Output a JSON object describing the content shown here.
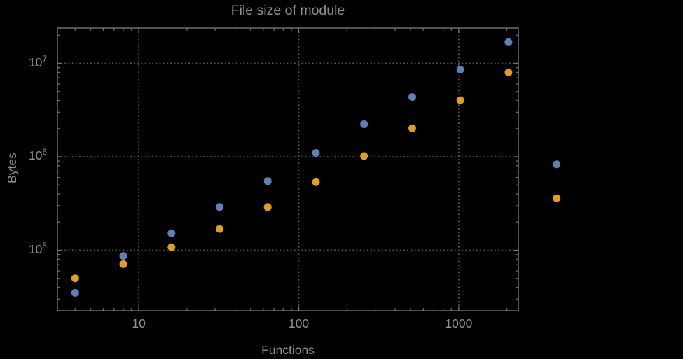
{
  "chart": {
    "title": "File size of module",
    "xlabel": "Functions",
    "ylabel": "Bytes"
  },
  "chart_data": {
    "type": "scatter",
    "title": "File size of module",
    "xlabel": "Functions",
    "ylabel": "Bytes",
    "x_scale": "log",
    "y_scale": "log",
    "grid": "dotted",
    "legend": "none",
    "xlim": [
      3.1,
      2360
    ],
    "ylim": [
      22500,
      23900000
    ],
    "x_tick_labels": [
      "10",
      "100",
      "1000"
    ],
    "x_tick_values": [
      10,
      100,
      1000
    ],
    "y_tick_labels": [
      {
        "base": "10",
        "exp": "5"
      },
      {
        "base": "10",
        "exp": "6"
      },
      {
        "base": "10",
        "exp": "7"
      }
    ],
    "y_tick_values": [
      100000,
      1000000,
      10000000
    ],
    "x": [
      4,
      8,
      16,
      32,
      64,
      128,
      256,
      512,
      1024,
      2048,
      4096
    ],
    "series": [
      {
        "name": "series-blue",
        "color": "#5E81B5",
        "values": [
          35000,
          87000,
          152000,
          290000,
          550000,
          1100000,
          2230000,
          4360000,
          8560000,
          16800000,
          830000
        ]
      },
      {
        "name": "series-orange",
        "color": "#E19C24",
        "values": [
          50000,
          71000,
          108000,
          169000,
          290000,
          536000,
          1020000,
          2020000,
          4040000,
          8000000,
          360000
        ]
      }
    ],
    "colors": {
      "background": "#000000",
      "text": "#8F8F8F",
      "frame": "#767676",
      "grid": "#5A5A5A",
      "series_blue": "#5E81B5",
      "series_orange": "#E19C24"
    }
  }
}
